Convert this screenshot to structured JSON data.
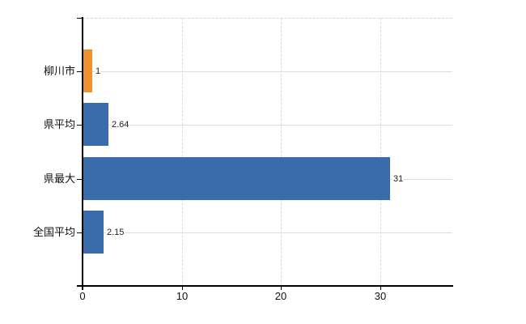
{
  "chart_data": {
    "type": "bar",
    "orientation": "horizontal",
    "title": "",
    "xlabel": "",
    "ylabel": "",
    "categories": [
      "柳川市",
      "県平均",
      "県最大",
      "全国平均"
    ],
    "values": [
      1,
      2.64,
      31,
      2.15
    ],
    "value_labels": [
      "1",
      "2.64",
      "31",
      "2.15"
    ],
    "bar_colors": [
      "#ee9230",
      "#3a6bab",
      "#3a6bab",
      "#3a6bab"
    ],
    "x_tick_values": [
      0,
      10,
      20,
      30
    ],
    "x_tick_labels": [
      "0",
      "10",
      "20",
      "30"
    ],
    "xlim": [
      0,
      37.3
    ],
    "legend": null,
    "grid": {
      "vertical_lines": "dashed",
      "horizontal_category_lines": "solid",
      "top_border": "dashed"
    },
    "colors": {
      "axis": "#000000",
      "grid_vertical": "#d9d9d9",
      "grid_horizontal": "#d9e0d9",
      "top_border": "#d5d2d8",
      "value_label_text": "#222222",
      "tick_label_text": "#111111",
      "background": "#ffffff"
    }
  }
}
